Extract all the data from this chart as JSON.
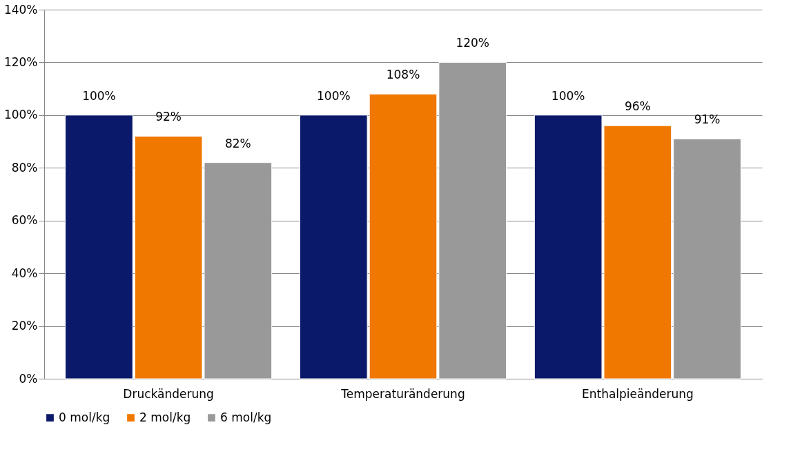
{
  "chart_data": {
    "type": "bar",
    "categories": [
      "Druckänderung",
      "Temperaturänderung",
      "Enthalpieänderung"
    ],
    "series": [
      {
        "name": "0 mol/kg",
        "color": "#0b196b",
        "values": [
          100,
          100,
          100
        ],
        "value_labels": [
          "100%",
          "100%",
          "100%"
        ]
      },
      {
        "name": "2 mol/kg",
        "color": "#f07800",
        "values": [
          92,
          108,
          96
        ],
        "value_labels": [
          "92%",
          "108%",
          "96%"
        ]
      },
      {
        "name": "6 mol/kg",
        "color": "#999999",
        "values": [
          82,
          120,
          91
        ],
        "value_labels": [
          "82%",
          "120%",
          "91%"
        ]
      }
    ],
    "ylim": [
      0,
      140
    ],
    "yticks": [
      {
        "value": 0,
        "label": "0%"
      },
      {
        "value": 20,
        "label": "20%"
      },
      {
        "value": 40,
        "label": "40%"
      },
      {
        "value": 60,
        "label": "60%"
      },
      {
        "value": 80,
        "label": "80%"
      },
      {
        "value": 100,
        "label": "100%"
      },
      {
        "value": 120,
        "label": "120%"
      },
      {
        "value": 140,
        "label": "140%"
      }
    ],
    "grid": "y",
    "legend": "bottom"
  }
}
